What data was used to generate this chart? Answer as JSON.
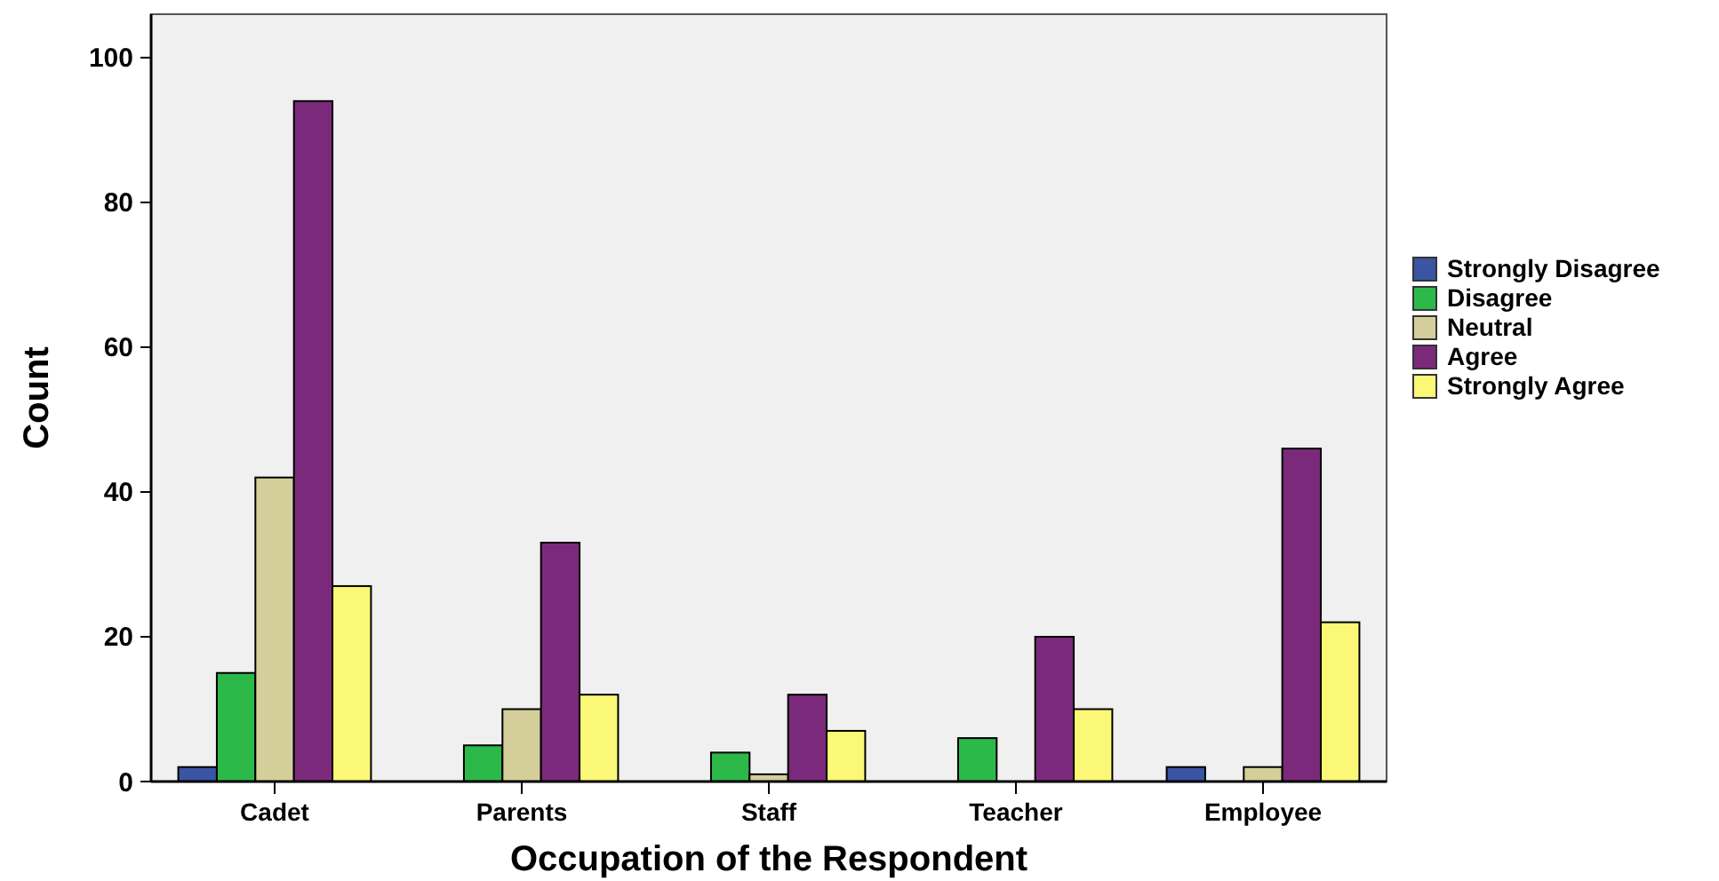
{
  "chart_data": {
    "type": "bar",
    "xlabel": "Occupation of the Respondent",
    "ylabel": "Count",
    "categories": [
      "Cadet",
      "Parents",
      "Staff",
      "Teacher",
      "Employee"
    ],
    "series": [
      {
        "name": "Strongly Disagree",
        "color": "#3a55a4",
        "values": [
          2,
          0,
          0,
          0,
          2
        ]
      },
      {
        "name": "Disagree",
        "color": "#2db84a",
        "values": [
          15,
          5,
          4,
          6,
          0
        ]
      },
      {
        "name": "Neutral",
        "color": "#d4cf9a",
        "values": [
          42,
          10,
          1,
          0,
          2
        ]
      },
      {
        "name": "Agree",
        "color": "#7b2a7b",
        "values": [
          94,
          33,
          12,
          20,
          46
        ]
      },
      {
        "name": "Strongly Agree",
        "color": "#fbf877",
        "values": [
          27,
          12,
          7,
          10,
          22
        ]
      }
    ],
    "ylim": [
      0,
      106
    ],
    "yticks": [
      0,
      20,
      40,
      60,
      80,
      100
    ],
    "grid": false,
    "legend": "right"
  }
}
